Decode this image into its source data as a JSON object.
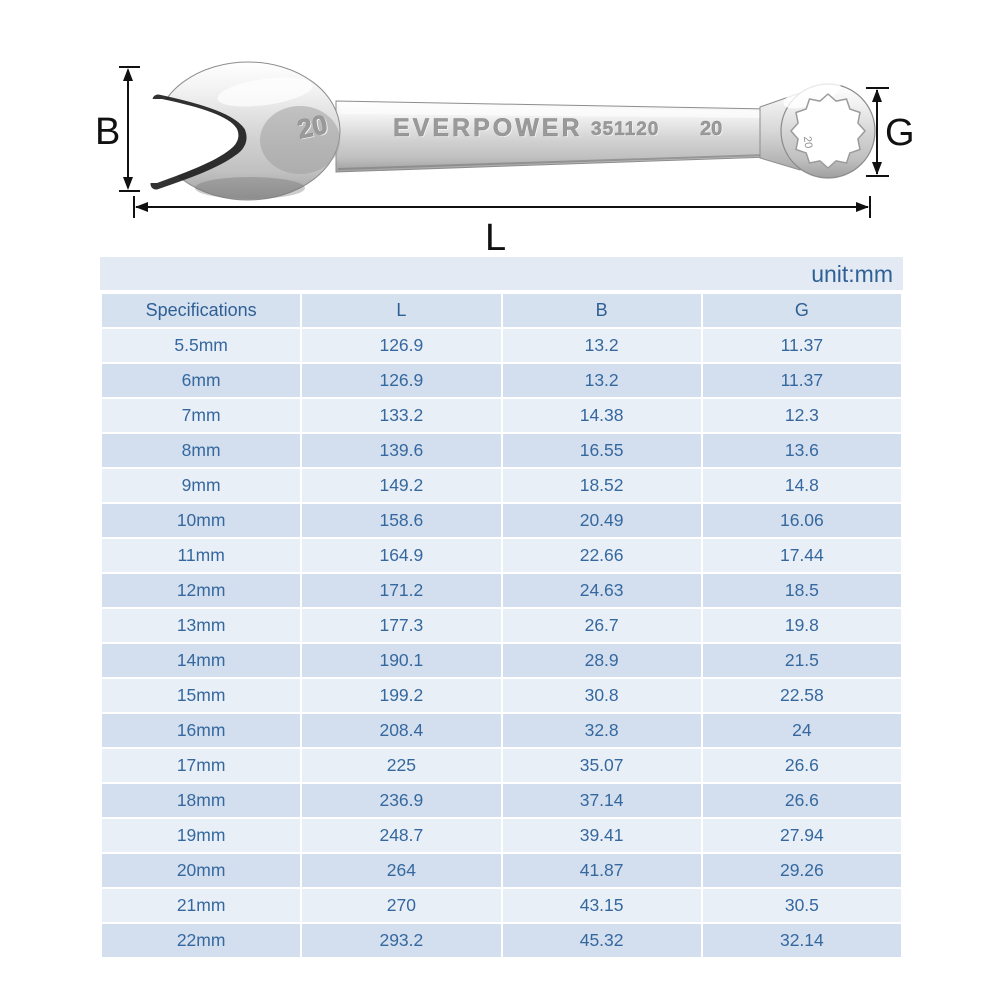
{
  "diagram": {
    "markings": {
      "head_size": "20",
      "brand": "EVERPOWER",
      "model_code": "351120",
      "shaft_size": "20",
      "ring_mark": "20"
    },
    "dimensions": {
      "width_label": "B",
      "length_label": "L",
      "ring_label": "G"
    }
  },
  "table": {
    "unit_label": "unit:mm",
    "columns": [
      "Specifications",
      "L",
      "B",
      "G"
    ],
    "rows": [
      [
        "5.5mm",
        "126.9",
        "13.2",
        "11.37"
      ],
      [
        "6mm",
        "126.9",
        "13.2",
        "11.37"
      ],
      [
        "7mm",
        "133.2",
        "14.38",
        "12.3"
      ],
      [
        "8mm",
        "139.6",
        "16.55",
        "13.6"
      ],
      [
        "9mm",
        "149.2",
        "18.52",
        "14.8"
      ],
      [
        "10mm",
        "158.6",
        "20.49",
        "16.06"
      ],
      [
        "11mm",
        "164.9",
        "22.66",
        "17.44"
      ],
      [
        "12mm",
        "171.2",
        "24.63",
        "18.5"
      ],
      [
        "13mm",
        "177.3",
        "26.7",
        "19.8"
      ],
      [
        "14mm",
        "190.1",
        "28.9",
        "21.5"
      ],
      [
        "15mm",
        "199.2",
        "30.8",
        "22.58"
      ],
      [
        "16mm",
        "208.4",
        "32.8",
        "24"
      ],
      [
        "17mm",
        "225",
        "35.07",
        "26.6"
      ],
      [
        "18mm",
        "236.9",
        "37.14",
        "26.6"
      ],
      [
        "19mm",
        "248.7",
        "39.41",
        "27.94"
      ],
      [
        "20mm",
        "264",
        "41.87",
        "29.26"
      ],
      [
        "21mm",
        "270",
        "43.15",
        "30.5"
      ],
      [
        "22mm",
        "293.2",
        "45.32",
        "32.14"
      ]
    ]
  },
  "colors": {
    "table_text": "#35689f",
    "unit_band_bg": "#e3eaf3",
    "header_bg": "#d6e1ef",
    "row_light": "#e9eff7",
    "row_dark": "#d3dfee",
    "dimension_lines": "#111111"
  }
}
